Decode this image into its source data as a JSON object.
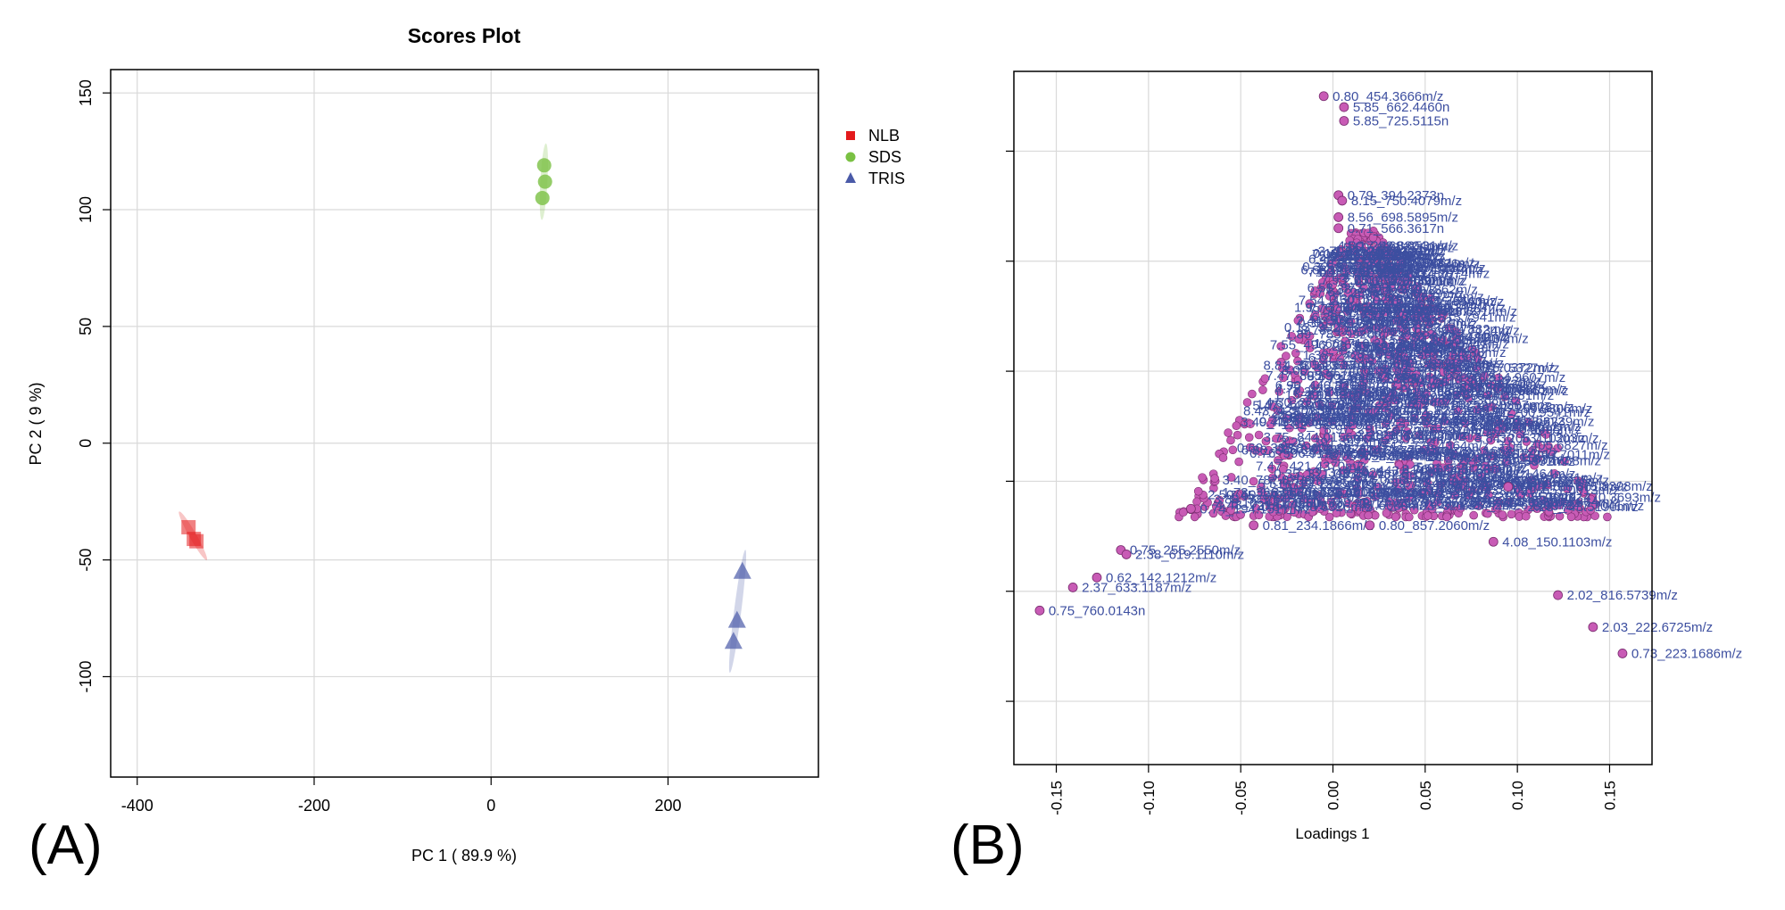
{
  "figure": {
    "panel_a_label": "(A)",
    "panel_b_label": "(B)"
  },
  "chart_data": [
    {
      "type": "scatter",
      "title": "Scores Plot",
      "xlabel": "PC 1 ( 89.9 %)",
      "ylabel": "PC 2 ( 9 %)",
      "xlim": [
        -430,
        370
      ],
      "ylim": [
        -143,
        160
      ],
      "xticks": [
        -400,
        -200,
        0,
        200
      ],
      "yticks": [
        -100,
        -50,
        0,
        50,
        100,
        150
      ],
      "grid": true,
      "legend": "right, outside plot",
      "series": [
        {
          "name": "NLB",
          "marker": "square",
          "color": "#e31a1c",
          "points": [
            [
              -342,
              -36
            ],
            [
              -336,
              -41
            ],
            [
              -333,
              -42
            ]
          ]
        },
        {
          "name": "SDS",
          "marker": "circle",
          "color": "#7ac143",
          "points": [
            [
              60,
              119
            ],
            [
              61,
              112
            ],
            [
              58,
              105
            ]
          ]
        },
        {
          "name": "TRIS",
          "marker": "triangle",
          "color": "#4a5aa8",
          "points": [
            [
              284,
              -55
            ],
            [
              278,
              -76
            ],
            [
              274,
              -85
            ]
          ]
        }
      ]
    },
    {
      "type": "scatter",
      "xlabel": "Loadings 1",
      "ylabel": "",
      "xlim": [
        -0.173,
        0.173
      ],
      "ylim": [
        -0.064,
        0.062
      ],
      "xticks": [
        -0.15,
        -0.1,
        -0.05,
        0.0,
        0.05,
        0.1,
        0.15
      ],
      "xtick_labels": [
        "-0.15",
        "-0.10",
        "-0.05",
        "0.00",
        "0.05",
        "0.10",
        "0.15"
      ],
      "grid": true,
      "point_color": "#c85bb5",
      "label_color": "#3d4fa0",
      "labeled_points": [
        {
          "x": -0.005,
          "y": 0.0575,
          "label": "0.80_454.3666m/z"
        },
        {
          "x": 0.006,
          "y": 0.0555,
          "label": "5.85_662.4460n"
        },
        {
          "x": 0.006,
          "y": 0.053,
          "label": "5.85_725.5115n"
        },
        {
          "x": 0.003,
          "y": 0.0395,
          "label": "0.79_394.2373n"
        },
        {
          "x": 0.005,
          "y": 0.0385,
          "label": "8.15_750.4079m/z"
        },
        {
          "x": 0.003,
          "y": 0.0355,
          "label": "8.56_698.5895m/z"
        },
        {
          "x": 0.003,
          "y": 0.0335,
          "label": "0.71_566.3617n"
        },
        {
          "x": 0.095,
          "y": -0.0135,
          "label": "6.81_786.6010m/z"
        },
        {
          "x": 0.087,
          "y": -0.0235,
          "label": "4.08_150.1103m/z"
        },
        {
          "x": -0.077,
          "y": -0.0175,
          "label": "0.74_194.1517m/z"
        },
        {
          "x": -0.043,
          "y": -0.0205,
          "label": "0.81_234.1866m/z"
        },
        {
          "x": 0.02,
          "y": -0.0205,
          "label": "0.80_857.2060m/z"
        },
        {
          "x": -0.115,
          "y": -0.025,
          "label": "0.75_255.2550m/z"
        },
        {
          "x": -0.112,
          "y": -0.0258,
          "label": "2.38_619.1110m/z"
        },
        {
          "x": -0.128,
          "y": -0.03,
          "label": "0.62_142.1212m/z"
        },
        {
          "x": -0.141,
          "y": -0.0318,
          "label": "2.37_633.1187m/z"
        },
        {
          "x": -0.159,
          "y": -0.036,
          "label": "0.75_760.0143n"
        },
        {
          "x": 0.122,
          "y": -0.0332,
          "label": "2.02_816.5739m/z"
        },
        {
          "x": 0.141,
          "y": -0.039,
          "label": "2.03_222.6725m/z"
        },
        {
          "x": 0.157,
          "y": -0.0438,
          "label": "0.73_223.1686m/z"
        }
      ]
    }
  ]
}
